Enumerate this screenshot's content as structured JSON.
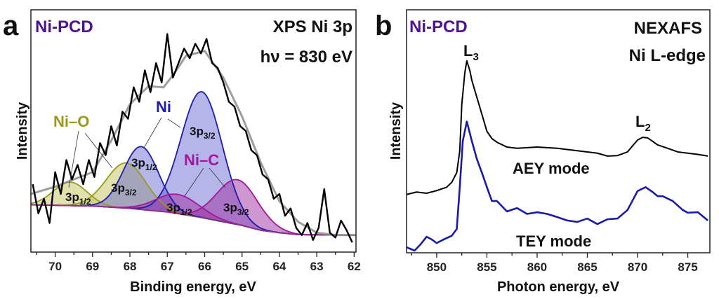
{
  "chart_data": [
    {
      "type": "line",
      "panel_letter": "a",
      "sample_label": "Ni-PCD",
      "title_lines": [
        "XPS Ni 3p",
        "hν = 830 eV"
      ],
      "xlabel": "Binding energy, eV",
      "ylabel": "Intensity",
      "xlim": [
        70.65,
        61.95
      ],
      "x_reversed": true,
      "ylim": [
        0,
        100
      ],
      "y_ticks_labeled": false,
      "x_ticks": [
        70,
        69,
        68,
        67,
        66,
        65,
        64,
        63,
        62
      ],
      "x_tick_labels": [
        "70",
        "69",
        "68",
        "67",
        "66",
        "65",
        "64",
        "63",
        "62"
      ],
      "grid": false,
      "colors": {
        "sample_label": "#4b1390",
        "experimental": "#000000",
        "envelope": "#8c8c8c",
        "Ni-O": "#9a9a18",
        "Ni": "#1c1cb0",
        "Ni-C": "#a0189a"
      },
      "background": [
        [
          70.65,
          19.5
        ],
        [
          69,
          19
        ],
        [
          68,
          18
        ],
        [
          67,
          16.5
        ],
        [
          66,
          14
        ],
        [
          65,
          11
        ],
        [
          64.5,
          9
        ],
        [
          64,
          8
        ],
        [
          63.5,
          7.2
        ],
        [
          61.95,
          7
        ]
      ],
      "components": [
        {
          "group": "Ni-O",
          "main": "3p",
          "sub": "1/2",
          "center": 69.6,
          "height": 9.7,
          "fwhm": 1.05
        },
        {
          "group": "Ni-O",
          "main": "3p",
          "sub": "3/2",
          "center": 68.1,
          "height": 18.7,
          "fwhm": 1.25
        },
        {
          "group": "Ni",
          "main": "3p",
          "sub": "1/2",
          "center": 67.7,
          "height": 26,
          "fwhm": 1.1
        },
        {
          "group": "Ni",
          "main": "3p",
          "sub": "3/2",
          "center": 66.08,
          "height": 52,
          "fwhm": 1.3
        },
        {
          "group": "Ni-C",
          "main": "3p",
          "sub": "1/2",
          "center": 66.72,
          "height": 8,
          "fwhm": 1.35
        },
        {
          "group": "Ni-C",
          "main": "3p",
          "sub": "3/2",
          "center": 65.12,
          "height": 18.5,
          "fwhm": 1.3
        }
      ],
      "group_labels": {
        "Ni-O": "Ni–O",
        "Ni": "Ni",
        "Ni-C": "Ni–C"
      },
      "envelope": [
        [
          70.65,
          24
        ],
        [
          70,
          27
        ],
        [
          69.5,
          30
        ],
        [
          69,
          33
        ],
        [
          68.5,
          46
        ],
        [
          68,
          61
        ],
        [
          67.5,
          68.5
        ],
        [
          67.1,
          68
        ],
        [
          66.8,
          74
        ],
        [
          66.5,
          81
        ],
        [
          66,
          83
        ],
        [
          65.5,
          72
        ],
        [
          65,
          56
        ],
        [
          64.5,
          37
        ],
        [
          64,
          21
        ],
        [
          63.5,
          12.5
        ],
        [
          63,
          8
        ],
        [
          62.5,
          7
        ],
        [
          61.95,
          7
        ]
      ],
      "experimental": [
        [
          70.6,
          28
        ],
        [
          70.45,
          16
        ],
        [
          70.3,
          22
        ],
        [
          70.15,
          12
        ],
        [
          70.0,
          33
        ],
        [
          69.85,
          24
        ],
        [
          69.7,
          38
        ],
        [
          69.55,
          30
        ],
        [
          69.4,
          36
        ],
        [
          69.25,
          28
        ],
        [
          69.1,
          38
        ],
        [
          68.95,
          31
        ],
        [
          68.8,
          45
        ],
        [
          68.65,
          40
        ],
        [
          68.5,
          52
        ],
        [
          68.35,
          44
        ],
        [
          68.2,
          58
        ],
        [
          68.05,
          55
        ],
        [
          67.9,
          68
        ],
        [
          67.75,
          62
        ],
        [
          67.6,
          75
        ],
        [
          67.45,
          66
        ],
        [
          67.3,
          78
        ],
        [
          67.15,
          70
        ],
        [
          67.0,
          90
        ],
        [
          66.85,
          72
        ],
        [
          66.7,
          78
        ],
        [
          66.55,
          84
        ],
        [
          66.4,
          80
        ],
        [
          66.25,
          86
        ],
        [
          66.1,
          82
        ],
        [
          65.95,
          88
        ],
        [
          65.8,
          78
        ],
        [
          65.65,
          76
        ],
        [
          65.5,
          70
        ],
        [
          65.35,
          62
        ],
        [
          65.2,
          60
        ],
        [
          65.05,
          52
        ],
        [
          64.9,
          50
        ],
        [
          64.75,
          42
        ],
        [
          64.6,
          40
        ],
        [
          64.45,
          32
        ],
        [
          64.3,
          30
        ],
        [
          64.15,
          22
        ],
        [
          64.0,
          24
        ],
        [
          63.85,
          15
        ],
        [
          63.7,
          18
        ],
        [
          63.55,
          10
        ],
        [
          63.4,
          7
        ],
        [
          63.25,
          12
        ],
        [
          63.1,
          5
        ],
        [
          62.95,
          10
        ],
        [
          62.8,
          26
        ],
        [
          62.65,
          8
        ],
        [
          62.5,
          6
        ],
        [
          62.35,
          13
        ],
        [
          62.2,
          9
        ],
        [
          62.05,
          4
        ]
      ]
    },
    {
      "type": "line",
      "panel_letter": "b",
      "sample_label": "Ni-PCD",
      "title_lines": [
        "NEXAFS",
        "Ni L-edge"
      ],
      "xlabel": "Photon energy, eV",
      "ylabel": "Intensity",
      "xlim": [
        847,
        877.2
      ],
      "ylim": [
        0,
        100
      ],
      "y_ticks_labeled": false,
      "x_ticks": [
        850,
        855,
        860,
        865,
        870,
        875
      ],
      "x_tick_labels": [
        "850",
        "855",
        "860",
        "865",
        "870",
        "875"
      ],
      "grid": false,
      "peak_labels": [
        {
          "main": "L",
          "sub": "3",
          "x": 853
        },
        {
          "main": "L",
          "sub": "2",
          "x": 870.8
        }
      ],
      "colors": {
        "sample_label": "#4b1390",
        "AEY": "#000000",
        "TEY": "#1a1aa8"
      },
      "series": [
        {
          "name": "AEY mode",
          "points": [
            [
              847,
              24
            ],
            [
              848,
              25
            ],
            [
              849,
              24.5
            ],
            [
              850,
              25.6
            ],
            [
              851,
              27
            ],
            [
              851.5,
              29
            ],
            [
              852,
              33
            ],
            [
              852.3,
              42
            ],
            [
              852.5,
              61
            ],
            [
              852.8,
              74
            ],
            [
              853,
              79
            ],
            [
              853.3,
              75
            ],
            [
              853.5,
              71
            ],
            [
              854,
              64
            ],
            [
              854.5,
              57
            ],
            [
              855,
              50
            ],
            [
              855.5,
              47
            ],
            [
              856,
              45.5
            ],
            [
              857,
              43.5
            ],
            [
              858,
              43
            ],
            [
              860,
              43.5
            ],
            [
              862,
              43
            ],
            [
              864,
              42
            ],
            [
              865,
              41.5
            ],
            [
              866,
              41
            ],
            [
              867,
              39.8
            ],
            [
              868,
              40
            ],
            [
              869,
              41.5
            ],
            [
              869.5,
              44
            ],
            [
              870,
              46.4
            ],
            [
              870.5,
              47.5
            ],
            [
              871,
              47.3
            ],
            [
              872,
              44.4
            ],
            [
              873,
              43
            ],
            [
              874,
              41.5
            ],
            [
              875,
              41
            ],
            [
              876,
              40.5
            ],
            [
              877,
              39.8
            ]
          ]
        },
        {
          "name": "TEY mode",
          "points": [
            [
              847,
              2.3
            ],
            [
              847.8,
              0.9
            ],
            [
              848.4,
              3.5
            ],
            [
              849,
              6.6
            ],
            [
              849.5,
              5.5
            ],
            [
              850,
              4
            ],
            [
              850.7,
              5.5
            ],
            [
              851.5,
              7
            ],
            [
              852,
              9.8
            ],
            [
              852.3,
              27
            ],
            [
              852.6,
              46
            ],
            [
              853,
              54
            ],
            [
              853.5,
              46
            ],
            [
              854,
              38.6
            ],
            [
              854.5,
              33
            ],
            [
              855,
              27
            ],
            [
              855.5,
              21.3
            ],
            [
              856,
              21.3
            ],
            [
              857,
              17
            ],
            [
              858,
              18.4
            ],
            [
              859,
              16
            ],
            [
              860,
              16.7
            ],
            [
              861,
              16
            ],
            [
              862,
              14.7
            ],
            [
              863,
              13.3
            ],
            [
              864,
              12.7
            ],
            [
              865,
              14.1
            ],
            [
              866,
              11.8
            ],
            [
              867,
              13.8
            ],
            [
              868,
              14.1
            ],
            [
              869,
              17.6
            ],
            [
              870,
              25.4
            ],
            [
              870.8,
              27
            ],
            [
              871.5,
              25
            ],
            [
              872,
              23.3
            ],
            [
              872.5,
              23.3
            ],
            [
              873.5,
              21.3
            ],
            [
              874.5,
              17.6
            ],
            [
              875,
              16.5
            ],
            [
              876,
              16.7
            ],
            [
              877,
              13.3
            ]
          ]
        }
      ]
    }
  ]
}
